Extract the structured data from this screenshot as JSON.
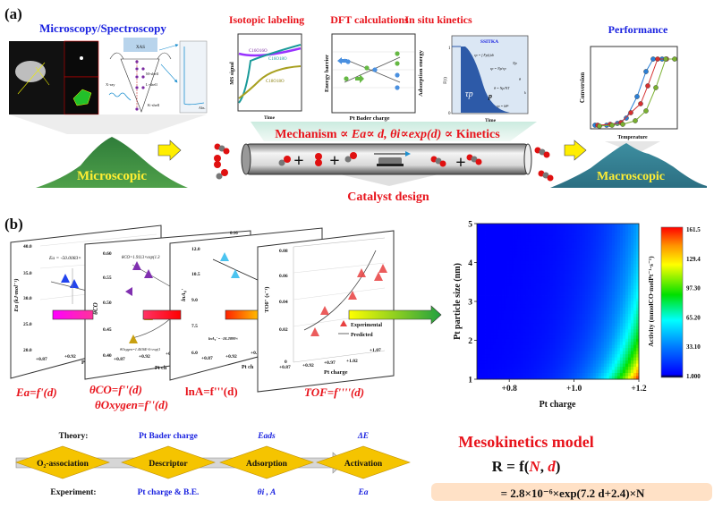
{
  "panel_a": {
    "label": "(a)",
    "microscopy": {
      "title": "Microscopy/Spectroscopy",
      "xas_label": "XAS",
      "m_shell": "M-shell",
      "l_shell": "L-shell",
      "k_shell": "K-shell",
      "xray": "X-ray",
      "abs": "Abs."
    },
    "isotopic": {
      "title": "Isotopic labeling",
      "ylabel": "MS signal",
      "xlabel": "Time",
      "series": [
        "C16O16O",
        "C16O18O",
        "C18O18O"
      ]
    },
    "dft": {
      "title": "DFT calculations",
      "ylabel_left": "Energy barrier",
      "ylabel_right": "Adsorption energy",
      "xlabel": "Pt Bader charge"
    },
    "kinetics": {
      "title": "In situ kinetics",
      "panel_title": "SSITKA",
      "ylabel": "F(t)",
      "xlabel": "Time",
      "tick_top": "1",
      "tick_bottom": "0",
      "tau": "τp",
      "p": "p",
      "eq1": "rp = ∫ Fp(t)dt",
      "eq2": "τp = Np/rp",
      "eq3": "θ = Np/NT",
      "eq4": "rp = kθⁿ",
      "brace1": "Np",
      "brace2": "θ",
      "brace3": "k"
    },
    "performance": {
      "title": "Performance",
      "ylabel": "Conversion",
      "xlabel": "Temperature"
    },
    "mechanism": {
      "prefix": "Mechanism ∝ ",
      "body": "Ea∝ d, θi∝exp(d) ∝ ",
      "suffix": "Kinetics"
    },
    "catalyst_design": "Catalyst design",
    "microscopic": "Microscopic",
    "macroscopic": "Macroscopic",
    "plus": "+"
  },
  "panel_b": {
    "label": "(b)",
    "plot1": {
      "ylabel": "Ea (kJ·mol⁻¹)",
      "yticks": [
        "40.0",
        "35.0",
        "30.0",
        "25.0",
        "20.0"
      ],
      "xticks": [
        "+0.87",
        "+0.92",
        "+0"
      ],
      "xlabel": "Pt c",
      "equation": "Ea = -50.0083×"
    },
    "plot2": {
      "ylabel": "θCO",
      "yticks": [
        "0.60",
        "0.55",
        "0.50",
        "0.45",
        "0.40"
      ],
      "xticks": [
        "+0.87",
        "+0.92",
        "+0.97"
      ],
      "xlabel": "Pt ch",
      "equation_top": "θCO=1.9113×exp(1.3",
      "equation_bottom": "θOxygen=1.4636E-6×exp(1"
    },
    "plot3": {
      "ylabel": "lnA₀'",
      "yticks": [
        "12.0",
        "10.5",
        "9.0",
        "7.5",
        "6.0"
      ],
      "xticks": [
        "+0.87",
        "+0.92",
        "+0."
      ],
      "xlabel": "Pt ch",
      "equation": "lnA₀' = -18.2899×",
      "top_value": "0.16"
    },
    "plot4": {
      "ylabel": "TOF' (s⁻¹)",
      "yticks": [
        "0.08",
        "0.06",
        "0.04",
        "0.02",
        "0"
      ],
      "xticks": [
        "+0.87",
        "+0.92",
        "+0.97",
        "+1.02",
        "+1.07"
      ],
      "xlabel": "Pt charge",
      "legend": [
        "Experimental",
        "Predicted"
      ]
    },
    "functions": {
      "f1": "Ea=f'(d)",
      "f2a": "θCO=f''(d)",
      "f2b": "θOxygen=f''(d)",
      "f3": "lnA=f'''(d)",
      "f4": "TOF=f''''(d)"
    },
    "heatmap": {
      "ylabel": "Pt particle size (nm)",
      "xlabel": "Pt charge",
      "xticks": [
        "+0.8",
        "+1.0",
        "+1.2"
      ],
      "yticks": [
        "5",
        "4",
        "3",
        "2",
        "1"
      ],
      "xlim": [
        0.7,
        1.2
      ],
      "ylim": [
        1,
        5
      ],
      "colorbar_label": "Activity (mmolCO·molPt⁻¹·s⁻¹)",
      "colorbar_ticks": [
        "161.5",
        "129.4",
        "97.30",
        "65.20",
        "33.10",
        "1.000"
      ],
      "vmin": 1.0,
      "vmax": 161.5,
      "colormap": [
        "#000000",
        "#0000ff",
        "#0078ff",
        "#00ffff",
        "#00e000",
        "#ffff00",
        "#ff9000",
        "#ff0000"
      ]
    }
  },
  "bottom": {
    "theory_label": "Theory:",
    "experiment_label": "Experiment:",
    "steps": [
      {
        "name": "O₂-association",
        "theory": "",
        "experiment": ""
      },
      {
        "name": "Descriptor",
        "theory": "Pt Bader charge",
        "experiment": "Pt charge & B.E."
      },
      {
        "name": "Adsorption",
        "theory": "Eads",
        "experiment": "θi , A"
      },
      {
        "name": "Activation",
        "theory": "ΔE",
        "experiment": "Ea"
      }
    ],
    "model_title": "Mesokinetics model",
    "model_eq": "R = f(N, d)",
    "model_formula": "= 2.8×10⁻⁶×exp(7.2 d+2.4)×N"
  },
  "colors": {
    "red_title": "#e8141c",
    "blue_title": "#1a22e0",
    "diamond": "#f5c400"
  }
}
